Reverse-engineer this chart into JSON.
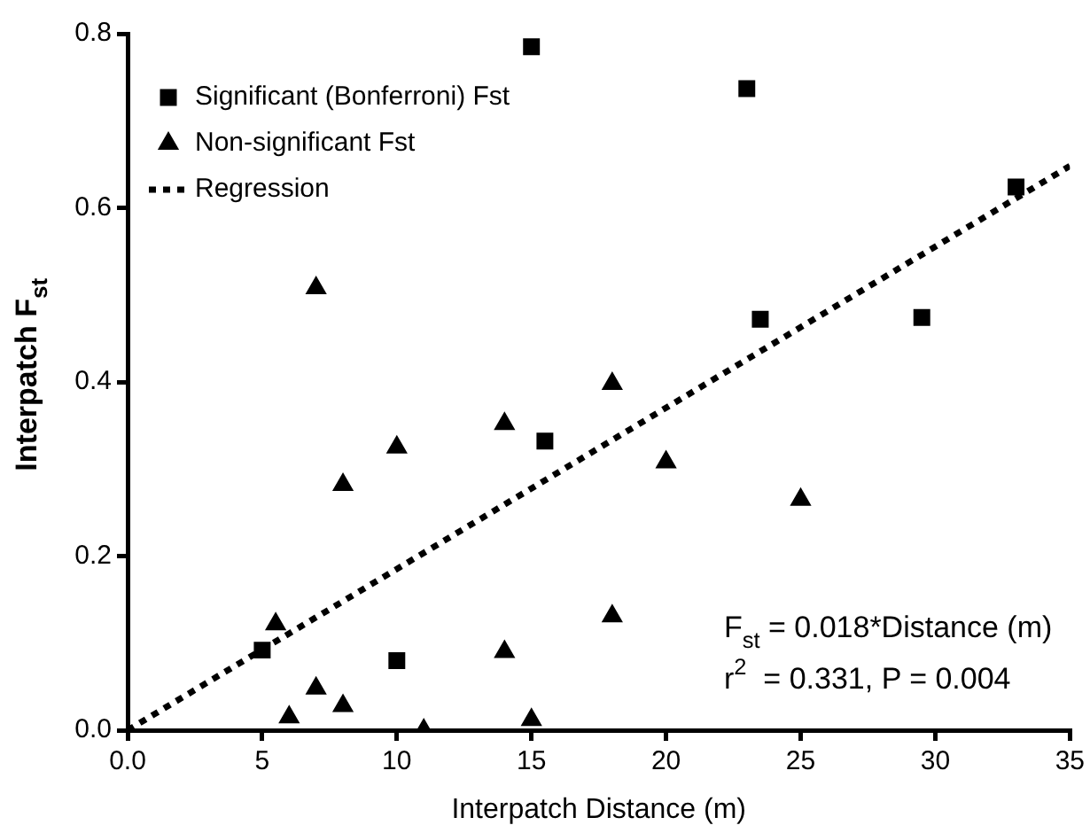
{
  "chart_data": {
    "type": "scatter",
    "xlabel": "Interpatch Distance (m)",
    "ylabel": "Interpatch F$_{st}$",
    "xlim": [
      0,
      35
    ],
    "xticks": [
      {
        "value": 0,
        "label": "0.0"
      },
      5,
      10,
      15,
      20,
      25,
      30,
      35
    ],
    "ylim": [
      0,
      0.8
    ],
    "yticks": [
      {
        "value": 0,
        "label": "0.0"
      },
      {
        "value": 0.2,
        "label": "0.2"
      },
      {
        "value": 0.4,
        "label": "0.4"
      },
      {
        "value": 0.6,
        "label": "0.6"
      },
      {
        "value": 0.8,
        "label": "0.8"
      }
    ],
    "grid": false,
    "legend": "top left",
    "series": [
      {
        "name": "Significant (Bonferroni) Fst",
        "color": "#000000",
        "marker": "square",
        "x": [
          5,
          10,
          15,
          15.5,
          23,
          23.5,
          29.5,
          33
        ],
        "values": [
          0.092,
          0.08,
          0.785,
          0.332,
          0.737,
          0.472,
          0.474,
          0.624
        ]
      },
      {
        "name": "Non-significant Fst",
        "color": "#000000",
        "marker": "triangle",
        "x": [
          5.5,
          6,
          7,
          7,
          8,
          8,
          10,
          11,
          14,
          14,
          15,
          18,
          18,
          20,
          25
        ],
        "values": [
          0.122,
          0.015,
          0.508,
          0.048,
          0.282,
          0.028,
          0.325,
          0.0,
          0.352,
          0.09,
          0.012,
          0.398,
          0.131,
          0.308,
          0.265
        ]
      },
      {
        "name": "Regression",
        "type": "line",
        "color": "#000000",
        "marker": "none",
        "line_style": "dotted",
        "x": [
          0,
          35
        ],
        "values": [
          0,
          0.648
        ]
      }
    ],
    "annotations": [
      {
        "text": "F$_{st}$ = 0.018*Distance (m)"
      },
      {
        "text": "r$^{2}$  = 0.331, P = 0.004"
      }
    ]
  }
}
